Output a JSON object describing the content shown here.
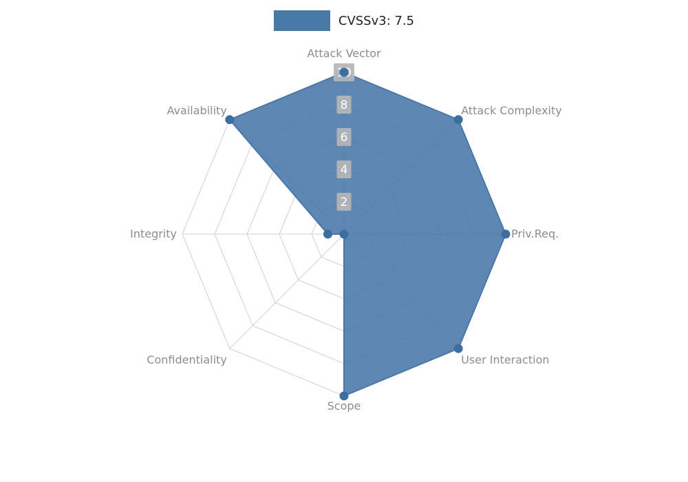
{
  "legend": {
    "series_label": "CVSSv3: 7.5"
  },
  "chart_data": {
    "type": "radar",
    "title": "",
    "categories": [
      "Attack Vector",
      "Attack Complexity",
      "Priv.Req.",
      "User Interaction",
      "Scope",
      "Confidentiality",
      "Integrity",
      "Availability"
    ],
    "series": [
      {
        "name": "CVSSv3: 7.5",
        "values": [
          10,
          10,
          10,
          10,
          10,
          0,
          1,
          10
        ]
      }
    ],
    "ticks": [
      2,
      4,
      6,
      8,
      10
    ],
    "rmax": 10,
    "legend_position": "top",
    "grid": true,
    "colors": {
      "fill": "#4878a8",
      "marker": "#3c6e9f",
      "grid": "#cfcfcf",
      "tick_chip": "#b6b6b6",
      "tick_text": "#ffffff",
      "axis_label": "#8c8c8c",
      "legend_text": "#222222"
    }
  }
}
